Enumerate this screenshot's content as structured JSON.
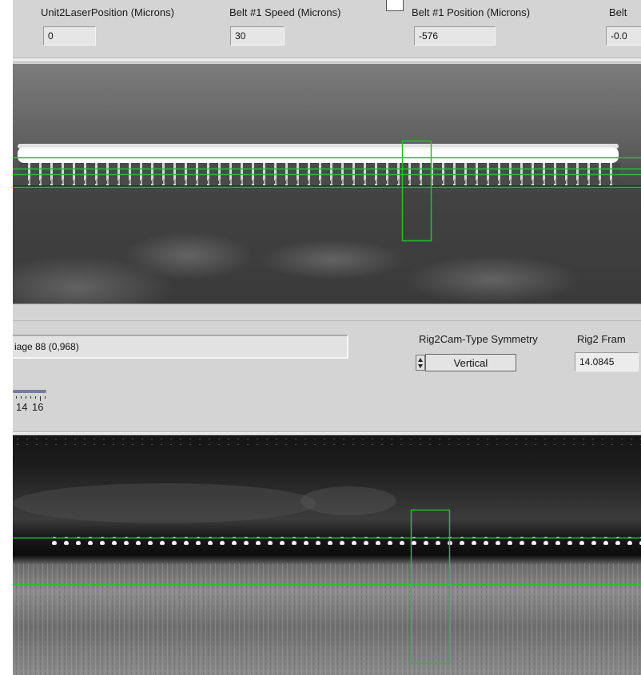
{
  "indicators": {
    "unit2_laser_position": {
      "label": "Unit2LaserPosition (Microns)",
      "value": "0"
    },
    "belt1_speed": {
      "label": "Belt #1 Speed (Microns)",
      "value": "30"
    },
    "belt1_position": {
      "label": "Belt #1 Position (Microns)",
      "value": "-576"
    },
    "belt_partial": {
      "label": "Belt",
      "value": "-0.0"
    }
  },
  "image_path": {
    "value": "iage 88   (0,968)"
  },
  "symmetry": {
    "label": "Rig2Cam-Type Symmetry",
    "value": "Vertical"
  },
  "frame_rate": {
    "label": "Rig2 Fram",
    "value": "14.0845"
  },
  "scale": {
    "left": "14",
    "right": "16"
  },
  "colors": {
    "panel": "#d4d4d4",
    "roi": "#22c02a",
    "indicator": "#e6e6e6"
  },
  "icons": {
    "ring_arrows": "up-down-arrow-icon"
  }
}
